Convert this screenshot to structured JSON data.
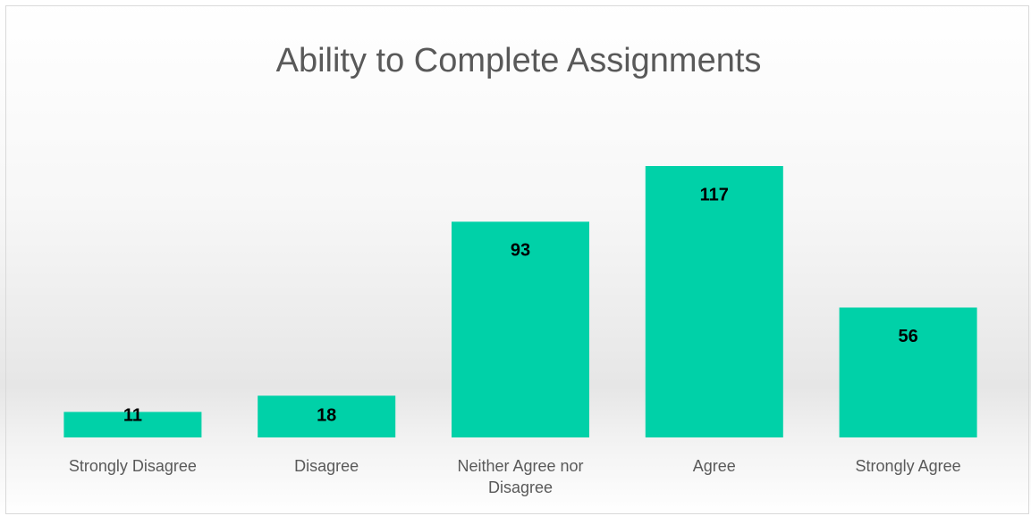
{
  "chart_data": {
    "type": "bar",
    "title": "Ability to Complete Assignments",
    "categories": [
      "Strongly Disagree",
      "Disagree",
      "Neither Agree nor Disagree",
      "Agree",
      "Strongly Agree"
    ],
    "values": [
      11,
      18,
      93,
      117,
      56
    ],
    "color": "#00d1a8"
  }
}
